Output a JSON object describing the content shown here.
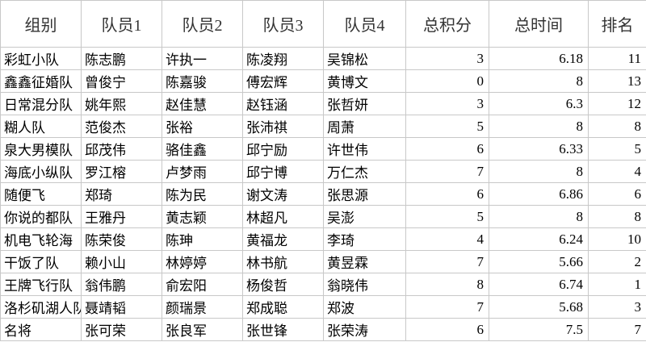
{
  "table": {
    "header": [
      "组别",
      "队员1",
      "队员2",
      "队员3",
      "队员4",
      "总积分",
      "总时间",
      "排名"
    ],
    "rows": [
      [
        "彩虹小队",
        "陈志鹏",
        "许执一",
        "陈凌翔",
        "吴锦松",
        3,
        6.18,
        11
      ],
      [
        "鑫鑫征婚队",
        "曾俊宁",
        "陈嘉骏",
        "傅宏辉",
        "黄博文",
        0,
        8,
        13
      ],
      [
        "日常混分队",
        "姚年熙",
        "赵佳慧",
        "赵钰涵",
        "张哲妍",
        3,
        6.3,
        12
      ],
      [
        "糊人队",
        "范俊杰",
        "张裕",
        "张沛祺",
        "周萧",
        5,
        8,
        8
      ],
      [
        "泉大男模队",
        "邱茂伟",
        "骆佳鑫",
        "邱宁励",
        "许世伟",
        6,
        6.33,
        5
      ],
      [
        "海底小纵队",
        "罗江榕",
        "卢梦雨",
        "邱宁博",
        "万仁杰",
        7,
        8,
        4
      ],
      [
        "随便飞",
        "郑琦",
        "陈为民",
        "谢文涛",
        "张思源",
        6,
        6.86,
        6
      ],
      [
        "你说的都队",
        "王雅丹",
        "黄志颖",
        "林超凡",
        "吴澎",
        5,
        8,
        8
      ],
      [
        "机电飞轮海",
        "陈荣俊",
        "陈珅",
        "黄福龙",
        "李琦",
        4,
        6.24,
        10
      ],
      [
        "干饭了队",
        "赖小山",
        "林婷婷",
        "林书航",
        "黄昱霖",
        7,
        5.66,
        2
      ],
      [
        "王牌飞行队",
        "翁伟鹏",
        "俞宏阳",
        "杨俊哲",
        "翁晓伟",
        8,
        6.74,
        1
      ],
      [
        "洛杉矶湖人队",
        "聂靖韬",
        "颜瑞景",
        "郑成聪",
        "郑波",
        7,
        5.68,
        3
      ],
      [
        "名将",
        "张可荣",
        "张良军",
        "张世锋",
        "张荣涛",
        6,
        7.5,
        7
      ]
    ]
  }
}
